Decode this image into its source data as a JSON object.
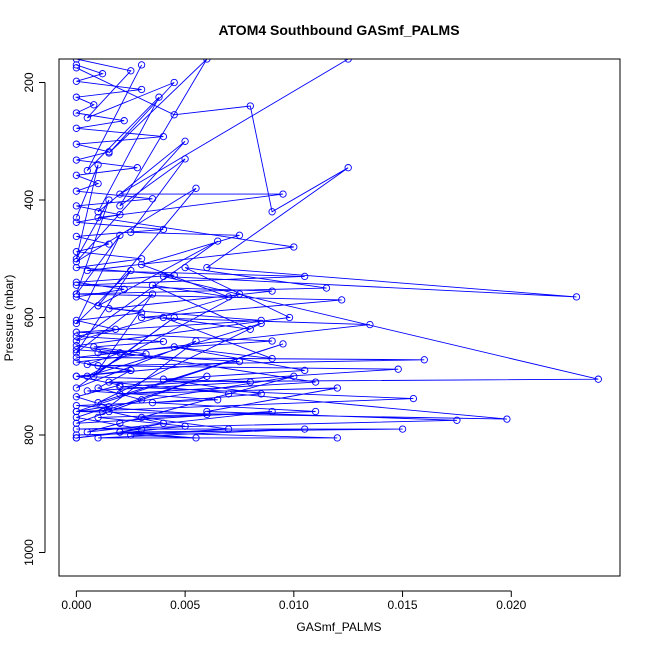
{
  "chart_data": {
    "type": "line",
    "title": "ATOM4 Southbound GASmf_PALMS",
    "xlabel": "GASmf_PALMS",
    "ylabel": "Pressure (mbar)",
    "xlim": [
      -0.0008,
      0.025
    ],
    "ylim": [
      1040,
      160
    ],
    "y_reversed": true,
    "x_ticks": [
      0.0,
      0.005,
      0.01,
      0.015,
      0.02
    ],
    "x_tick_labels": [
      "0.000",
      "0.005",
      "0.010",
      "0.015",
      "0.020"
    ],
    "y_ticks": [
      200,
      400,
      600,
      800,
      1000
    ],
    "y_tick_labels": [
      "200",
      "400",
      "600",
      "800",
      "1000"
    ],
    "grid": false,
    "series": [
      {
        "color": "#0000ff",
        "marker": "open-circle",
        "points": [
          [
            0.0,
            805
          ],
          [
            0.003,
            790
          ],
          [
            0.0,
            770
          ],
          [
            0.0015,
            752
          ],
          [
            0.0,
            735
          ],
          [
            0.002,
            715
          ],
          [
            0.0,
            700
          ],
          [
            0.0025,
            690
          ],
          [
            0.0,
            676
          ],
          [
            0.0032,
            662
          ],
          [
            0.0008,
            650
          ],
          [
            0.004,
            641
          ],
          [
            0.0,
            632
          ],
          [
            0.0018,
            620
          ],
          [
            0.0,
            605
          ],
          [
            0.003,
            592
          ],
          [
            0.001,
            580
          ],
          [
            0.0,
            565
          ],
          [
            0.0022,
            552
          ],
          [
            0.0,
            540
          ],
          [
            0.0045,
            528
          ],
          [
            0.0,
            515
          ],
          [
            0.003,
            500
          ],
          [
            0.0,
            488
          ],
          [
            0.0015,
            475
          ],
          [
            0.0,
            462
          ],
          [
            0.004,
            450
          ],
          [
            0.0,
            438
          ],
          [
            0.002,
            425
          ],
          [
            0.0,
            410
          ],
          [
            0.0035,
            398
          ],
          [
            0.0,
            385
          ],
          [
            0.001,
            372
          ],
          [
            0.0,
            358
          ],
          [
            0.0028,
            345
          ],
          [
            0.0,
            332
          ],
          [
            0.0015,
            318
          ],
          [
            0.0,
            305
          ],
          [
            0.004,
            292
          ],
          [
            0.0,
            278
          ],
          [
            0.0022,
            265
          ],
          [
            0.0,
            252
          ],
          [
            0.0008,
            238
          ],
          [
            0.0,
            225
          ],
          [
            0.003,
            212
          ],
          [
            0.0,
            198
          ],
          [
            0.0012,
            185
          ],
          [
            0.0,
            170
          ]
        ]
      },
      {
        "color": "#0000ff",
        "marker": "open-circle",
        "points": [
          [
            0.0,
            175
          ],
          [
            0.0045,
            255
          ],
          [
            0.008,
            240
          ],
          [
            0.009,
            420
          ],
          [
            0.0125,
            345
          ],
          [
            0.006,
            515
          ],
          [
            0.023,
            565
          ],
          [
            0.004,
            530
          ],
          [
            0.024,
            705
          ],
          [
            0.0015,
            710
          ],
          [
            0.0198,
            773
          ],
          [
            0.0,
            760
          ],
          [
            0.0155,
            738
          ],
          [
            0.002,
            718
          ],
          [
            0.0148,
            688
          ],
          [
            0.001,
            682
          ],
          [
            0.016,
            672
          ],
          [
            0.0,
            668
          ],
          [
            0.0135,
            612
          ],
          [
            0.003,
            600
          ],
          [
            0.0122,
            570
          ],
          [
            0.0,
            560
          ],
          [
            0.0115,
            550
          ],
          [
            0.005,
            515
          ],
          [
            0.0098,
            600
          ],
          [
            0.0,
            648
          ],
          [
            0.011,
            710
          ],
          [
            0.002,
            730
          ],
          [
            0.012,
            720
          ],
          [
            0.006,
            760
          ],
          [
            0.0175,
            775
          ],
          [
            0.0,
            790
          ],
          [
            0.015,
            790
          ],
          [
            0.002,
            795
          ],
          [
            0.012,
            805
          ],
          [
            0.001,
            805
          ],
          [
            0.0105,
            790
          ],
          [
            0.0,
            800
          ]
        ]
      },
      {
        "color": "#0000ff",
        "marker": "open-circle",
        "points": [
          [
            0.003,
            170
          ],
          [
            0.0005,
            350
          ],
          [
            0.0038,
            225
          ],
          [
            0.001,
            420
          ],
          [
            0.005,
            300
          ],
          [
            0.0,
            505
          ],
          [
            0.0055,
            380
          ],
          [
            0.001,
            580
          ],
          [
            0.0065,
            470
          ],
          [
            0.0,
            640
          ],
          [
            0.0075,
            560
          ],
          [
            0.0005,
            700
          ],
          [
            0.0085,
            610
          ],
          [
            0.001,
            745
          ],
          [
            0.0095,
            645
          ],
          [
            0.0,
            760
          ],
          [
            0.01,
            700
          ],
          [
            0.002,
            780
          ],
          [
            0.007,
            730
          ],
          [
            0.0005,
            795
          ],
          [
            0.009,
            760
          ],
          [
            0.0,
            780
          ],
          [
            0.006,
            700
          ],
          [
            0.0012,
            760
          ],
          [
            0.0055,
            640
          ],
          [
            0.0,
            720
          ],
          [
            0.0045,
            600
          ],
          [
            0.0008,
            700
          ],
          [
            0.0035,
            560
          ],
          [
            0.0,
            660
          ],
          [
            0.0025,
            520
          ],
          [
            0.0,
            610
          ],
          [
            0.002,
            460
          ],
          [
            0.0,
            560
          ],
          [
            0.0015,
            400
          ],
          [
            0.0,
            500
          ],
          [
            0.001,
            340
          ],
          [
            0.0,
            430
          ]
        ]
      },
      {
        "color": "#0000ff",
        "marker": "open-circle",
        "points": [
          [
            0.0,
            160
          ],
          [
            0.0025,
            180
          ],
          [
            0.0005,
            260
          ],
          [
            0.0045,
            200
          ],
          [
            0.0015,
            320
          ],
          [
            0.006,
            160
          ],
          [
            0.002,
            410
          ],
          [
            0.005,
            330
          ],
          [
            0.0025,
            455
          ],
          [
            0.0075,
            460
          ],
          [
            0.003,
            510
          ],
          [
            0.007,
            565
          ],
          [
            0.0035,
            545
          ],
          [
            0.008,
            620
          ],
          [
            0.004,
            600
          ],
          [
            0.009,
            670
          ],
          [
            0.0045,
            650
          ],
          [
            0.0105,
            690
          ],
          [
            0.004,
            705
          ],
          [
            0.0085,
            730
          ],
          [
            0.0035,
            745
          ],
          [
            0.011,
            760
          ],
          [
            0.003,
            770
          ],
          [
            0.007,
            790
          ],
          [
            0.0025,
            800
          ],
          [
            0.0055,
            805
          ],
          [
            0.002,
            795
          ],
          [
            0.004,
            780
          ],
          [
            0.0015,
            760
          ],
          [
            0.003,
            740
          ],
          [
            0.001,
            720
          ],
          [
            0.0025,
            690
          ],
          [
            0.0005,
            680
          ],
          [
            0.002,
            660
          ],
          [
            0.0,
            655
          ]
        ]
      },
      {
        "color": "#0000ff",
        "marker": "open-circle",
        "points": [
          [
            0.0125,
            160
          ],
          [
            0.002,
            390
          ],
          [
            0.0095,
            390
          ],
          [
            0.001,
            430
          ],
          [
            0.01,
            480
          ],
          [
            0.0005,
            520
          ],
          [
            0.0105,
            530
          ],
          [
            0.0,
            545
          ],
          [
            0.009,
            555
          ],
          [
            0.0015,
            585
          ],
          [
            0.0085,
            605
          ],
          [
            0.0,
            625
          ],
          [
            0.009,
            640
          ],
          [
            0.001,
            660
          ],
          [
            0.0075,
            675
          ],
          [
            0.0,
            700
          ],
          [
            0.008,
            710
          ],
          [
            0.0005,
            725
          ],
          [
            0.0065,
            740
          ],
          [
            0.0,
            750
          ],
          [
            0.006,
            765
          ],
          [
            0.001,
            770
          ],
          [
            0.005,
            785
          ],
          [
            0.0,
            805
          ]
        ]
      }
    ]
  }
}
